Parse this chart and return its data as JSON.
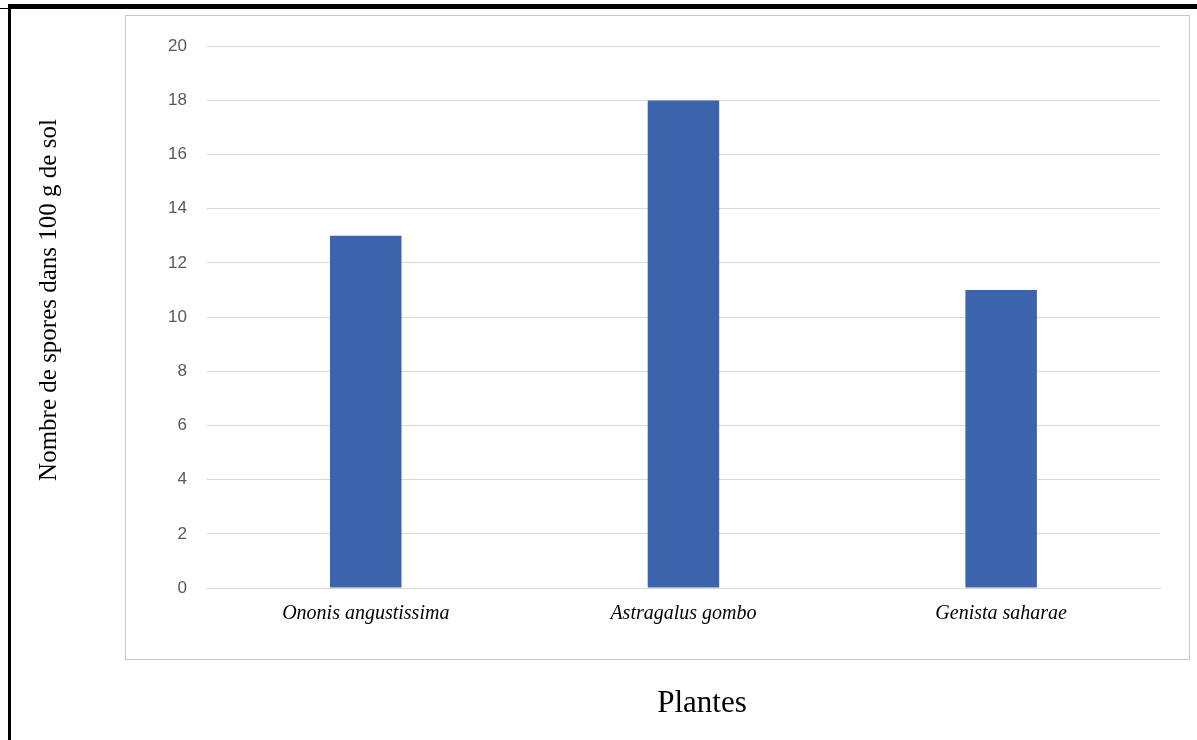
{
  "chart_data": {
    "type": "bar",
    "xlabel": "Plantes",
    "ylabel": "Nombre de spores dans 100 g de sol",
    "categories": [
      "Ononis angustissima",
      "Astragalus gombo",
      "Genista saharae"
    ],
    "values": [
      13,
      18,
      11
    ],
    "color": "#3c64ac",
    "ylim": [
      0,
      20
    ],
    "yticks": [
      0,
      2,
      4,
      6,
      8,
      10,
      12,
      14,
      16,
      18,
      20
    ],
    "grid": "y"
  }
}
